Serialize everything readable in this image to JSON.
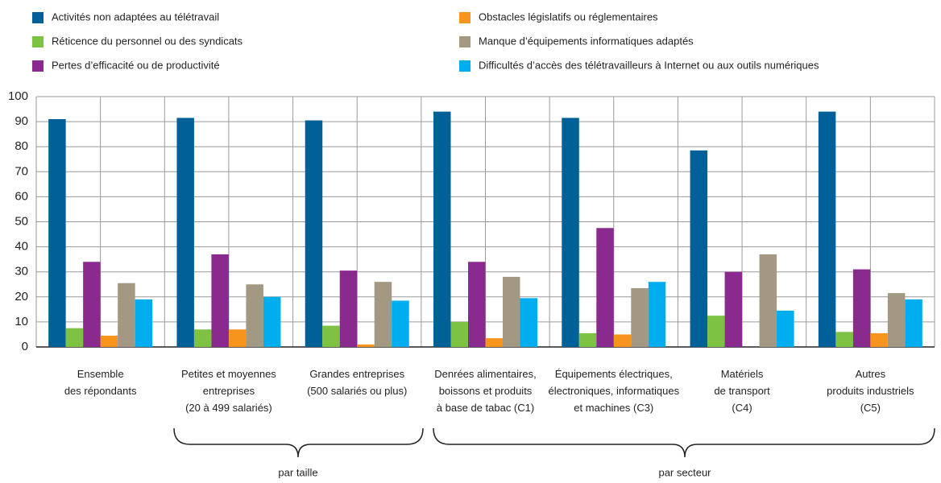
{
  "chart_data": {
    "type": "bar",
    "categories": [
      "Ensemble\ndes répondants",
      "Petites et moyennes\nentreprises\n(20 à 499 salariés)",
      "Grandes entreprises\n(500 salariés ou plus)",
      "Denrées alimentaires,\nboissons et produits\nà base de tabac (C1)",
      "Équipements électriques,\nélectroniques, informatiques\net machines (C3)",
      "Matériels\nde transport\n(C4)",
      "Autres\nproduits industriels\n(C5)"
    ],
    "series": [
      {
        "name": "Activités non adaptées au télétravail",
        "color": "#006199",
        "values": [
          91,
          91.5,
          90.5,
          94,
          91.5,
          78.5,
          94
        ]
      },
      {
        "name": "Réticence du personnel ou des syndicats",
        "color": "#7dc242",
        "values": [
          7.5,
          7,
          8.5,
          10,
          5.5,
          12.5,
          6
        ]
      },
      {
        "name": "Pertes d’efficacité ou de productivité",
        "color": "#8a2a8f",
        "values": [
          34,
          37,
          30.5,
          34,
          47.5,
          30,
          31
        ]
      },
      {
        "name": "Obstacles législatifs ou réglementaires",
        "color": "#f7941d",
        "values": [
          4.5,
          7,
          1,
          3.5,
          5,
          0,
          5.5
        ]
      },
      {
        "name": "Manque d’équipements informatiques adaptés",
        "color": "#a39882",
        "values": [
          25.5,
          25,
          26,
          28,
          23.5,
          37,
          21.5
        ]
      },
      {
        "name": "Difficultés d’accès des télétravailleurs à Internet ou aux outils numériques",
        "color": "#00aeef",
        "values": [
          19,
          20,
          18.5,
          19.5,
          26,
          14.5,
          19
        ]
      }
    ],
    "ylim": [
      0,
      100
    ],
    "yticks": [
      0,
      10,
      20,
      30,
      40,
      50,
      60,
      70,
      80,
      90,
      100
    ],
    "grid": true,
    "annotations": [
      "par taille",
      "par secteur"
    ]
  }
}
